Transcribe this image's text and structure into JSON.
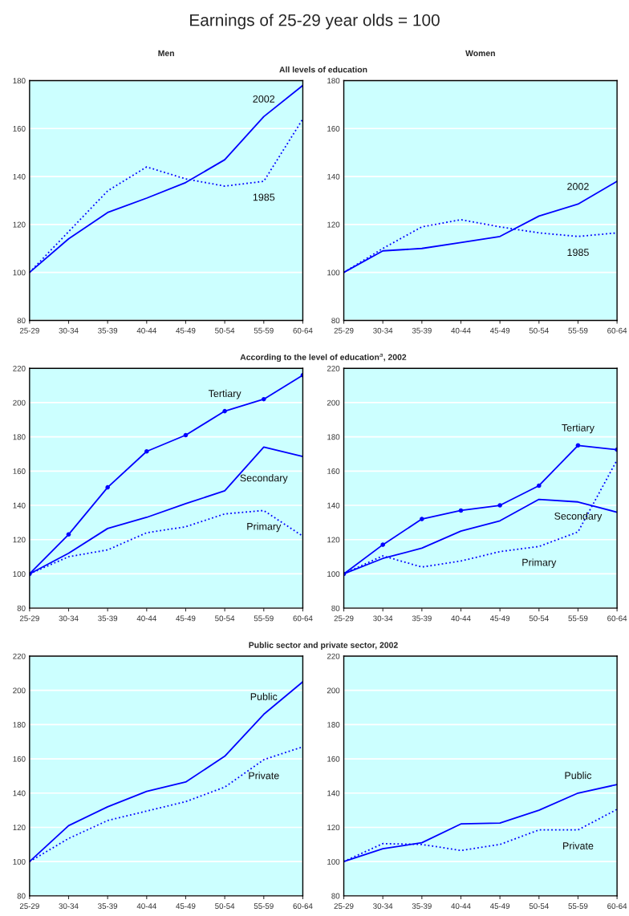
{
  "chart_data": [
    {
      "type": "line",
      "title": "Men",
      "subtitle": "All levels of education",
      "annotations": [
        "Earnings of 25-29 year olds = 100"
      ],
      "categories": [
        "25-29",
        "30-34",
        "35-39",
        "40-44",
        "45-49",
        "50-54",
        "55-59",
        "60-64"
      ],
      "series": [
        {
          "name": "2002",
          "color": "#0000ff",
          "line_style": "solid",
          "values": [
            100,
            114,
            125,
            131,
            137.5,
            147,
            165,
            178
          ]
        },
        {
          "name": "1985",
          "color": "#0000ff",
          "line_style": "dotted",
          "values": [
            100,
            117,
            134,
            144,
            139,
            136,
            138,
            164
          ]
        }
      ],
      "ylim": [
        80,
        180
      ],
      "yticks": [
        80,
        100,
        120,
        140,
        160,
        180
      ],
      "grid": "y",
      "legend": false
    },
    {
      "type": "line",
      "title": "Women",
      "categories": [
        "25-29",
        "30-34",
        "35-39",
        "40-44",
        "45-49",
        "50-54",
        "55-59",
        "60-64"
      ],
      "series": [
        {
          "name": "2002",
          "color": "#0000ff",
          "line_style": "solid",
          "values": [
            100,
            109,
            110,
            112.5,
            115,
            123.5,
            128.5,
            138
          ]
        },
        {
          "name": "1985",
          "color": "#0000ff",
          "line_style": "dotted",
          "values": [
            100,
            110,
            119,
            122,
            119,
            116.5,
            115,
            116.5
          ]
        }
      ],
      "ylim": [
        80,
        180
      ],
      "yticks": [
        80,
        100,
        120,
        140,
        160,
        180
      ],
      "grid": "y",
      "legend": false
    },
    {
      "type": "line",
      "subtitle": "According to the level of education$^{a}$, 2002",
      "categories": [
        "25-29",
        "30-34",
        "35-39",
        "40-44",
        "45-49",
        "50-54",
        "55-59",
        "60-64"
      ],
      "series": [
        {
          "name": "Tertiary",
          "color": "#0000ff",
          "line_style": "solid",
          "marker": "circle",
          "values": [
            100,
            123,
            150.5,
            171.5,
            181,
            195,
            202,
            216
          ]
        },
        {
          "name": "Secondary",
          "color": "#0000ff",
          "line_style": "solid",
          "values": [
            100,
            112,
            126.5,
            133,
            141,
            148.5,
            174,
            168.5
          ]
        },
        {
          "name": "Primary",
          "color": "#0000ff",
          "line_style": "dotted",
          "values": [
            100,
            110,
            114,
            124,
            127.5,
            135,
            137,
            122
          ]
        }
      ],
      "ylim": [
        80,
        220
      ],
      "yticks": [
        80,
        100,
        120,
        140,
        160,
        180,
        200,
        220
      ],
      "grid": "y",
      "legend": false
    },
    {
      "type": "line",
      "categories": [
        "25-29",
        "30-34",
        "35-39",
        "40-44",
        "45-49",
        "50-54",
        "55-59",
        "60-64"
      ],
      "series": [
        {
          "name": "Tertiary",
          "color": "#0000ff",
          "line_style": "solid",
          "marker": "circle",
          "values": [
            100,
            117,
            132,
            137,
            140,
            151.5,
            175,
            172.5
          ]
        },
        {
          "name": "Secondary",
          "color": "#0000ff",
          "line_style": "solid",
          "values": [
            100,
            109,
            115,
            125,
            131,
            143.5,
            142,
            136
          ]
        },
        {
          "name": "Primary",
          "color": "#0000ff",
          "line_style": "dotted",
          "values": [
            100,
            110.5,
            104,
            107.5,
            113,
            116,
            124.5,
            166.5
          ]
        }
      ],
      "ylim": [
        80,
        220
      ],
      "yticks": [
        80,
        100,
        120,
        140,
        160,
        180,
        200,
        220
      ],
      "grid": "y",
      "legend": false
    },
    {
      "type": "line",
      "subtitle": "Public sector and private sector, 2002",
      "categories": [
        "25-29",
        "30-34",
        "35-39",
        "40-44",
        "45-49",
        "50-54",
        "55-59",
        "60-64"
      ],
      "series": [
        {
          "name": "Public",
          "color": "#0000ff",
          "line_style": "solid",
          "values": [
            100,
            121,
            132,
            141,
            146.5,
            161.5,
            186,
            205
          ]
        },
        {
          "name": "Private",
          "color": "#0000ff",
          "line_style": "dotted",
          "values": [
            100,
            113.5,
            124,
            129.5,
            135,
            143.5,
            159.5,
            167
          ]
        }
      ],
      "ylim": [
        80,
        220
      ],
      "yticks": [
        80,
        100,
        120,
        140,
        160,
        180,
        200,
        220
      ],
      "grid": "y",
      "legend": false
    },
    {
      "type": "line",
      "categories": [
        "25-29",
        "30-34",
        "35-39",
        "40-44",
        "45-49",
        "50-54",
        "55-59",
        "60-64"
      ],
      "series": [
        {
          "name": "Public",
          "color": "#0000ff",
          "line_style": "solid",
          "values": [
            100,
            107.5,
            111,
            122,
            122.5,
            130,
            140,
            145
          ]
        },
        {
          "name": "Private",
          "color": "#0000ff",
          "line_style": "dotted",
          "values": [
            100,
            110.5,
            110,
            106.5,
            110,
            118.5,
            118.5,
            130.5
          ]
        }
      ],
      "ylim": [
        80,
        220
      ],
      "yticks": [
        80,
        100,
        120,
        140,
        160,
        180,
        200,
        220
      ],
      "grid": "y",
      "legend": false
    }
  ]
}
